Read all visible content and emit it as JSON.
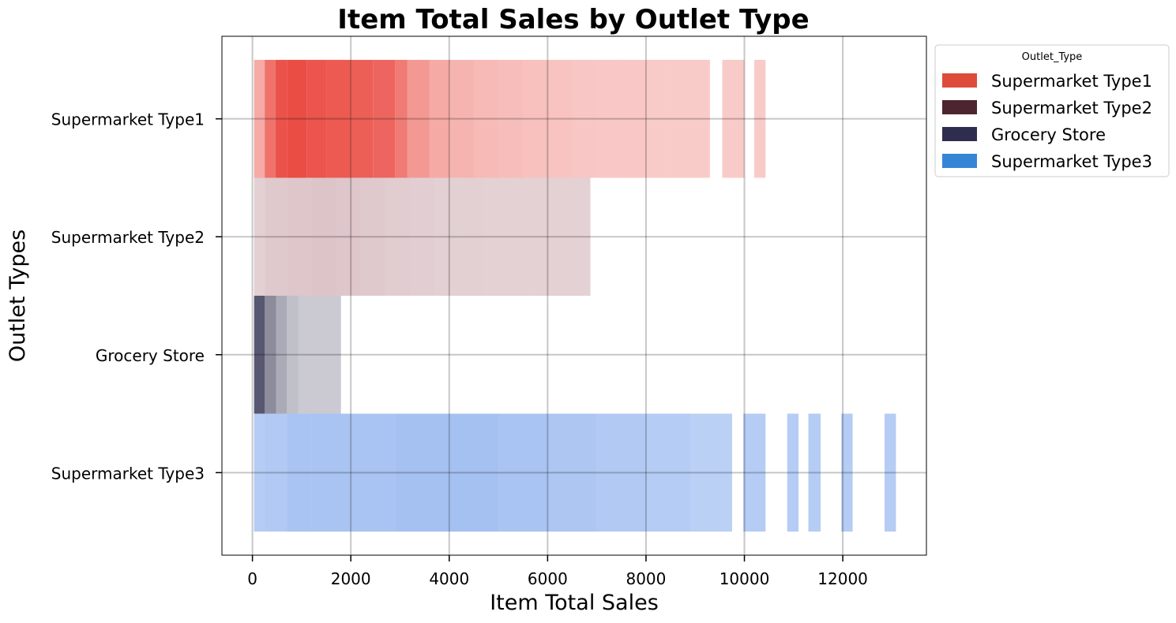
{
  "chart_data": {
    "type": "bar",
    "orientation": "horizontal",
    "subtype": "2d-histogram",
    "title": "Item Total Sales by Outlet Type",
    "xlabel": "Item Total Sales",
    "ylabel": "Outlet Types",
    "xlim": [
      -620,
      13700
    ],
    "x_ticks": [
      "0",
      "2000",
      "4000",
      "6000",
      "8000",
      "10000",
      "12000"
    ],
    "x_tick_values": [
      0,
      2000,
      4000,
      6000,
      8000,
      10000,
      12000
    ],
    "categories": [
      "Supermarket Type1",
      "Supermarket Type2",
      "Grocery Store",
      "Supermarket Type3"
    ],
    "grid": true,
    "legend": {
      "title": "Outlet_Type",
      "placement": "outside-top-right",
      "entries": [
        {
          "label": "Supermarket Type1",
          "color": "#dd4c3b"
        },
        {
          "label": "Supermarket Type2",
          "color": "#4c2530"
        },
        {
          "label": "Grocery Store",
          "color": "#2e2d4d"
        },
        {
          "label": "Supermarket Type3",
          "color": "#3585d6"
        }
      ]
    },
    "series": [
      {
        "name": "Supermarket Type1",
        "color": "#e9433a",
        "bins": [
          {
            "x0": 33,
            "x1": 250,
            "density": 0.45
          },
          {
            "x0": 250,
            "x1": 470,
            "density": 0.75
          },
          {
            "x0": 470,
            "x1": 700,
            "density": 0.92
          },
          {
            "x0": 700,
            "x1": 1100,
            "density": 0.95
          },
          {
            "x0": 1100,
            "x1": 1500,
            "density": 0.9
          },
          {
            "x0": 1500,
            "x1": 2000,
            "density": 0.88
          },
          {
            "x0": 2000,
            "x1": 2450,
            "density": 0.85
          },
          {
            "x0": 2450,
            "x1": 2900,
            "density": 0.82
          },
          {
            "x0": 2900,
            "x1": 3150,
            "density": 0.7
          },
          {
            "x0": 3150,
            "x1": 3600,
            "density": 0.55
          },
          {
            "x0": 3600,
            "x1": 4000,
            "density": 0.45
          },
          {
            "x0": 4000,
            "x1": 4500,
            "density": 0.4
          },
          {
            "x0": 4500,
            "x1": 5000,
            "density": 0.37
          },
          {
            "x0": 5000,
            "x1": 5500,
            "density": 0.35
          },
          {
            "x0": 5500,
            "x1": 6000,
            "density": 0.33
          },
          {
            "x0": 6000,
            "x1": 6500,
            "density": 0.32
          },
          {
            "x0": 6500,
            "x1": 7000,
            "density": 0.3
          },
          {
            "x0": 7000,
            "x1": 7500,
            "density": 0.29
          },
          {
            "x0": 7500,
            "x1": 8000,
            "density": 0.29
          },
          {
            "x0": 8000,
            "x1": 8500,
            "density": 0.28
          },
          {
            "x0": 8500,
            "x1": 9300,
            "density": 0.28
          },
          {
            "x0": 9550,
            "x1": 10000,
            "density": 0.28
          },
          {
            "x0": 10200,
            "x1": 10430,
            "density": 0.28
          }
        ]
      },
      {
        "name": "Supermarket Type2",
        "color": "#b07882",
        "bins": [
          {
            "x0": 33,
            "x1": 250,
            "density": 0.35
          },
          {
            "x0": 250,
            "x1": 700,
            "density": 0.4
          },
          {
            "x0": 700,
            "x1": 1200,
            "density": 0.42
          },
          {
            "x0": 1200,
            "x1": 1700,
            "density": 0.44
          },
          {
            "x0": 1700,
            "x1": 2200,
            "density": 0.42
          },
          {
            "x0": 2200,
            "x1": 2700,
            "density": 0.4
          },
          {
            "x0": 2700,
            "x1": 3200,
            "density": 0.38
          },
          {
            "x0": 3200,
            "x1": 3700,
            "density": 0.36
          },
          {
            "x0": 3700,
            "x1": 4200,
            "density": 0.35
          },
          {
            "x0": 4200,
            "x1": 4700,
            "density": 0.35
          },
          {
            "x0": 4700,
            "x1": 5200,
            "density": 0.34
          },
          {
            "x0": 5200,
            "x1": 5700,
            "density": 0.34
          },
          {
            "x0": 5700,
            "x1": 6300,
            "density": 0.34
          },
          {
            "x0": 6300,
            "x1": 6870,
            "density": 0.34
          }
        ]
      },
      {
        "name": "Grocery Store",
        "color": "#2e2d4d",
        "bins": [
          {
            "x0": 33,
            "x1": 250,
            "density": 0.8
          },
          {
            "x0": 250,
            "x1": 480,
            "density": 0.55
          },
          {
            "x0": 480,
            "x1": 700,
            "density": 0.4
          },
          {
            "x0": 700,
            "x1": 930,
            "density": 0.3
          },
          {
            "x0": 930,
            "x1": 1800,
            "density": 0.25
          }
        ]
      },
      {
        "name": "Supermarket Type3",
        "color": "#5b8ee6",
        "bins": [
          {
            "x0": 33,
            "x1": 250,
            "density": 0.45
          },
          {
            "x0": 250,
            "x1": 700,
            "density": 0.48
          },
          {
            "x0": 700,
            "x1": 1200,
            "density": 0.52
          },
          {
            "x0": 1200,
            "x1": 2000,
            "density": 0.52
          },
          {
            "x0": 2000,
            "x1": 2900,
            "density": 0.52
          },
          {
            "x0": 2900,
            "x1": 4000,
            "density": 0.55
          },
          {
            "x0": 4000,
            "x1": 5000,
            "density": 0.55
          },
          {
            "x0": 5000,
            "x1": 6000,
            "density": 0.52
          },
          {
            "x0": 6000,
            "x1": 7000,
            "density": 0.5
          },
          {
            "x0": 7000,
            "x1": 8000,
            "density": 0.48
          },
          {
            "x0": 8000,
            "x1": 8900,
            "density": 0.45
          },
          {
            "x0": 8900,
            "x1": 9750,
            "density": 0.42
          },
          {
            "x0": 9980,
            "x1": 10430,
            "density": 0.45
          },
          {
            "x0": 10870,
            "x1": 11100,
            "density": 0.45
          },
          {
            "x0": 11300,
            "x1": 11550,
            "density": 0.45
          },
          {
            "x0": 11970,
            "x1": 12200,
            "density": 0.45
          },
          {
            "x0": 12850,
            "x1": 13080,
            "density": 0.45
          }
        ]
      }
    ]
  }
}
